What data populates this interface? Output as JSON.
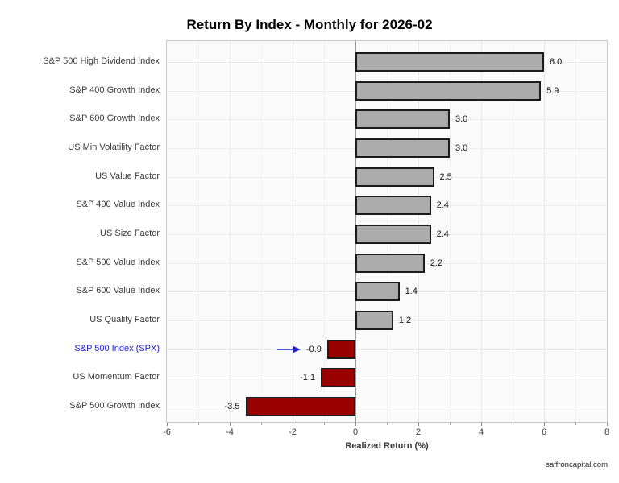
{
  "title": "Return By Index - Monthly for 2026-02",
  "watermark": "saffroncapital.com",
  "chart_data": {
    "type": "bar",
    "orientation": "horizontal",
    "title": "Return By Index - Monthly for 2026-02",
    "xlabel": "Realized Return (%)",
    "xlim": [
      -6,
      8
    ],
    "xticks": [
      -6,
      -4,
      -2,
      0,
      2,
      4,
      6,
      8
    ],
    "grid": true,
    "categories": [
      "S&P 500 High Dividend Index",
      "S&P 400 Growth Index",
      "S&P 600 Growth Index",
      "US Min Volatility Factor",
      "US Value Factor",
      "S&P 400 Value Index",
      "US Size Factor",
      "S&P 500 Value Index",
      "S&P 600 Value Index",
      "US Quality Factor",
      "S&P 500 Index (SPX)",
      "US Momentum Factor",
      "S&P 500 Growth Index"
    ],
    "values": [
      6.0,
      5.9,
      3.0,
      3.0,
      2.5,
      2.4,
      2.4,
      2.2,
      1.4,
      1.2,
      -0.9,
      -1.1,
      -3.5
    ],
    "value_labels": [
      "6.0",
      "5.9",
      "3.0",
      "3.0",
      "2.5",
      "2.4",
      "2.4",
      "2.2",
      "1.4",
      "1.2",
      "-0.9",
      "-1.1",
      "-3.5"
    ],
    "highlight_index": 10,
    "colors": {
      "positive_fill": "#ababab",
      "negative_fill": "#990000",
      "bar_border": "#1b1b1b",
      "highlight_label": "#2222cc",
      "annotation_arrow": "#2222dd"
    }
  }
}
